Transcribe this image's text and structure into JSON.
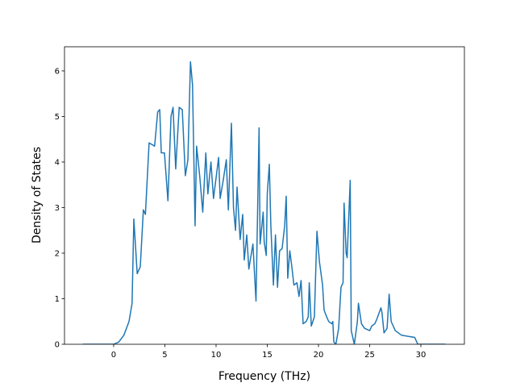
{
  "chart_data": {
    "type": "line",
    "x_label": "Frequency (THz)",
    "y_label": "Density of States",
    "xlim": [
      -4.8,
      34.25
    ],
    "ylim": [
      0,
      6.53
    ],
    "xticks": [
      0,
      5,
      10,
      15,
      20,
      25,
      30
    ],
    "yticks": [
      0,
      1,
      2,
      3,
      4,
      5,
      6
    ],
    "series": [
      {
        "color": "#1f77b4",
        "x": [
          -3,
          0,
          0.5,
          1.0,
          1.5,
          1.8,
          1.97,
          2.3,
          2.6,
          2.9,
          3.1,
          3.46,
          4.0,
          4.3,
          4.5,
          4.65,
          4.96,
          5.3,
          5.6,
          5.8,
          6.06,
          6.4,
          6.7,
          7.0,
          7.25,
          7.5,
          7.7,
          7.95,
          8.1,
          8.4,
          8.7,
          9.0,
          9.2,
          9.5,
          9.75,
          10.0,
          10.25,
          10.4,
          10.7,
          11.0,
          11.2,
          11.5,
          11.7,
          11.9,
          12.05,
          12.35,
          12.6,
          12.75,
          13.0,
          13.2,
          13.6,
          13.9,
          14.2,
          14.3,
          14.6,
          14.7,
          14.9,
          15.0,
          15.2,
          15.35,
          15.6,
          15.8,
          16.0,
          16.2,
          16.45,
          16.7,
          16.85,
          17.0,
          17.2,
          17.4,
          17.6,
          17.9,
          18.1,
          18.3,
          18.5,
          18.8,
          19.0,
          19.1,
          19.3,
          19.6,
          19.85,
          20.1,
          20.4,
          20.55,
          20.8,
          21.0,
          21.3,
          21.4,
          21.5,
          21.7,
          21.97,
          22.2,
          22.4,
          22.5,
          22.7,
          22.8,
          23.1,
          23.2,
          23.5,
          23.8,
          23.9,
          24.2,
          24.5,
          25.0,
          25.2,
          25.5,
          25.7,
          26.1,
          26.2,
          26.4,
          26.7,
          26.9,
          27.1,
          27.5,
          28.1,
          29.4,
          29.7,
          32.4
        ],
        "values": [
          0,
          0,
          0.05,
          0.2,
          0.5,
          0.9,
          2.75,
          1.55,
          1.7,
          2.95,
          2.85,
          4.42,
          4.35,
          5.1,
          5.15,
          4.2,
          4.2,
          3.15,
          5.0,
          5.2,
          3.85,
          5.2,
          5.15,
          3.7,
          4.05,
          6.2,
          5.7,
          2.6,
          4.35,
          3.7,
          2.9,
          4.2,
          3.3,
          4.0,
          3.2,
          3.65,
          4.1,
          3.2,
          3.6,
          4.05,
          2.95,
          4.85,
          3.0,
          2.5,
          3.45,
          2.3,
          2.85,
          1.85,
          2.4,
          1.65,
          2.2,
          0.95,
          4.75,
          2.2,
          2.9,
          2.25,
          1.95,
          3.3,
          3.95,
          2.6,
          1.3,
          2.4,
          1.25,
          2.05,
          2.1,
          2.6,
          3.25,
          1.45,
          2.05,
          1.7,
          1.3,
          1.35,
          1.05,
          1.4,
          0.45,
          0.5,
          0.6,
          1.35,
          0.4,
          0.6,
          2.48,
          1.8,
          1.3,
          0.75,
          0.6,
          0.5,
          0.45,
          0.5,
          0.05,
          0,
          0.35,
          1.25,
          1.35,
          3.1,
          2.0,
          1.9,
          3.6,
          0.3,
          0,
          0.5,
          0.9,
          0.45,
          0.35,
          0.3,
          0.4,
          0.45,
          0.55,
          0.8,
          0.7,
          0.25,
          0.35,
          1.1,
          0.5,
          0.3,
          0.2,
          0.15,
          0,
          0
        ]
      }
    ]
  }
}
